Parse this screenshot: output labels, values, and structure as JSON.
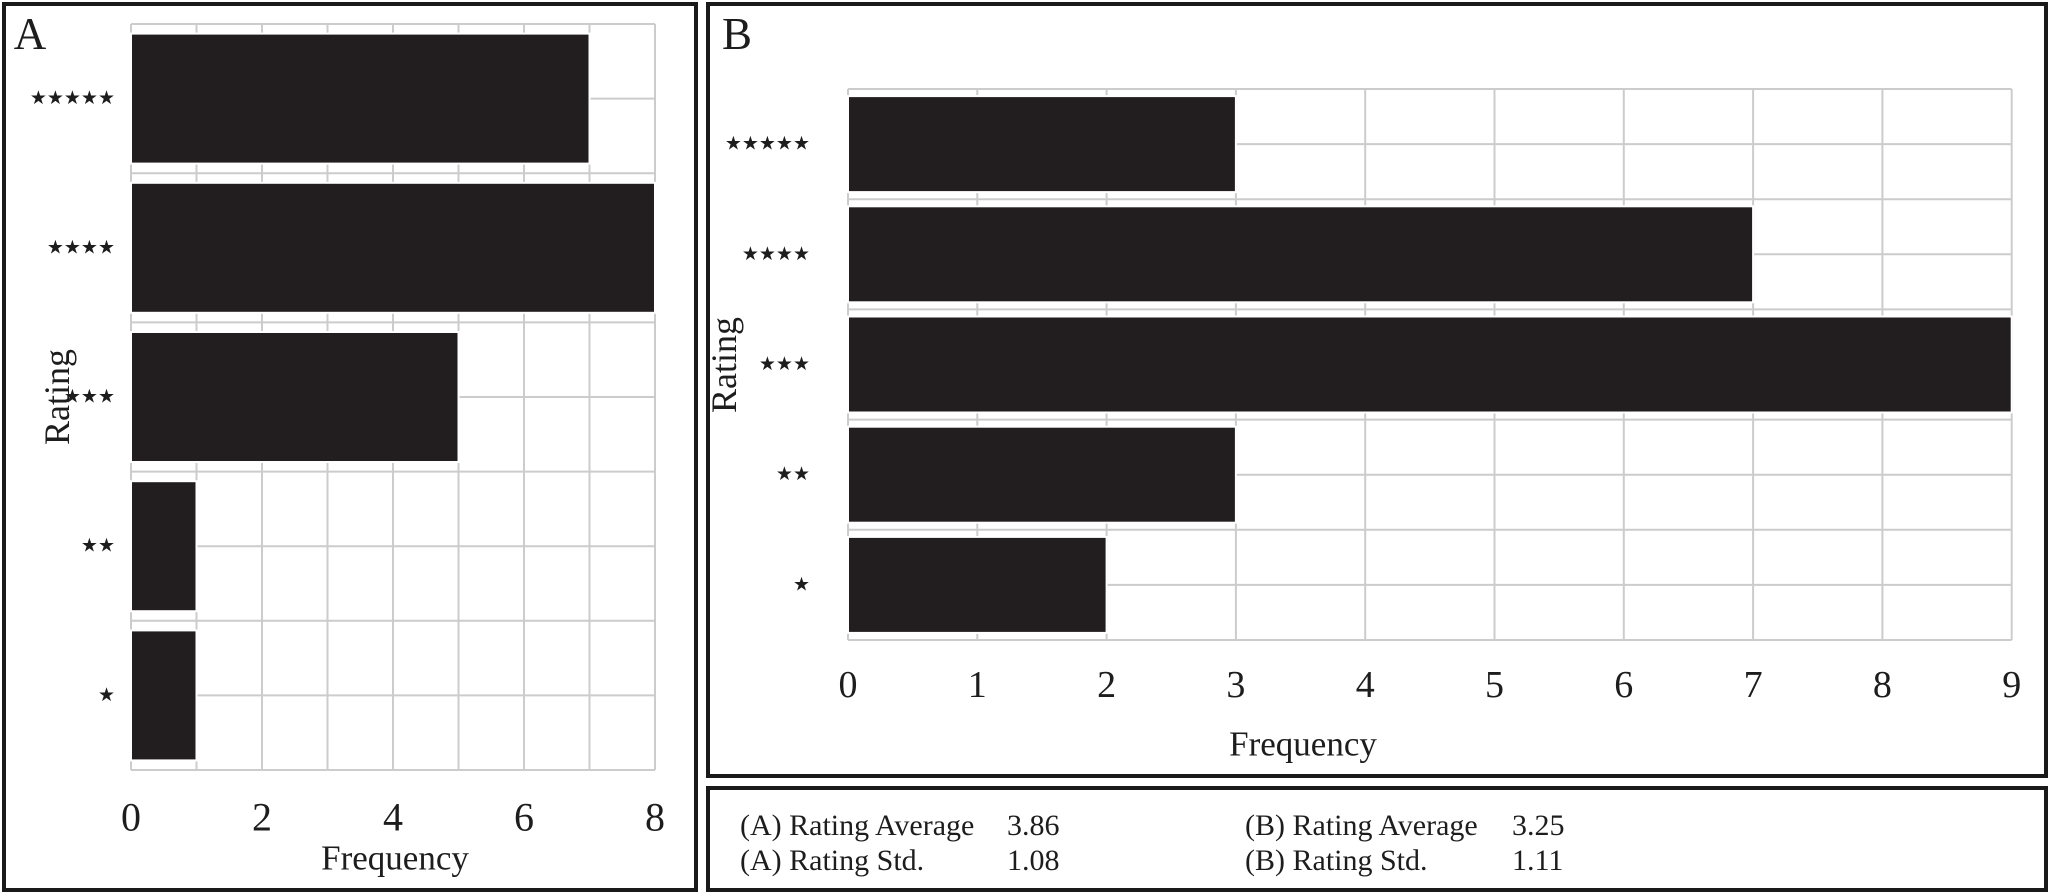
{
  "figure": {
    "panel_a": {
      "label": "A",
      "x_label": "Frequency",
      "y_label": "Rating",
      "x_ticks": [
        "0",
        "2",
        "4",
        "6",
        "8"
      ],
      "x_max": 8,
      "categories": [
        "★★★★★",
        "★★★★",
        "★★★",
        "★★",
        "★"
      ],
      "values": [
        7,
        8,
        5,
        1,
        1
      ]
    },
    "panel_b": {
      "label": "B",
      "x_label": "Frequency",
      "y_label": "Rating",
      "x_ticks": [
        "0",
        "1",
        "2",
        "3",
        "4",
        "5",
        "6",
        "7",
        "8",
        "9"
      ],
      "x_max": 9,
      "categories": [
        "★★★★★",
        "★★★★",
        "★★★",
        "★★",
        "★"
      ],
      "values": [
        3,
        7,
        9,
        3,
        2
      ]
    },
    "stats": {
      "a_avg_label": "(A) Rating Average",
      "a_avg_value": "3.86",
      "a_std_label": "(A) Rating Std.",
      "a_std_value": "1.08",
      "b_avg_label": "(B) Rating Average",
      "b_avg_value": "3.25",
      "b_std_label": "(B) Rating Std.",
      "b_std_value": "1.11"
    },
    "colors": {
      "bar": "#221e1f",
      "grid": "#cccccc",
      "border": "#1a1a1a",
      "text": "#1d1d1d",
      "background": "#ffffff"
    }
  },
  "chart_data": [
    {
      "type": "bar",
      "orientation": "horizontal",
      "panel": "A",
      "title": "A",
      "categories": [
        "5 stars",
        "4 stars",
        "3 stars",
        "2 stars",
        "1 star"
      ],
      "values": [
        7,
        8,
        5,
        1,
        1
      ],
      "xlabel": "Frequency",
      "ylabel": "Rating",
      "xlim": [
        0,
        8
      ],
      "x_tick_step": 2,
      "grid": true,
      "legend": false,
      "stats": {
        "rating_average": 3.86,
        "rating_std": 1.08
      }
    },
    {
      "type": "bar",
      "orientation": "horizontal",
      "panel": "B",
      "title": "B",
      "categories": [
        "5 stars",
        "4 stars",
        "3 stars",
        "2 stars",
        "1 star"
      ],
      "values": [
        3,
        7,
        9,
        3,
        2
      ],
      "xlabel": "Frequency",
      "ylabel": "Rating",
      "xlim": [
        0,
        9
      ],
      "x_tick_step": 1,
      "grid": true,
      "legend": false,
      "stats": {
        "rating_average": 3.25,
        "rating_std": 1.11
      }
    }
  ]
}
